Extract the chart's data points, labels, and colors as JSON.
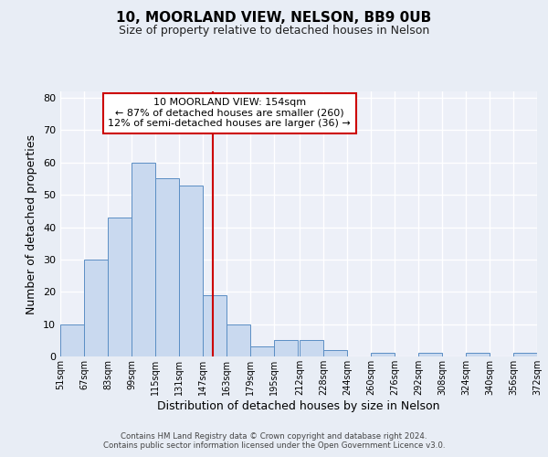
{
  "title": "10, MOORLAND VIEW, NELSON, BB9 0UB",
  "subtitle": "Size of property relative to detached houses in Nelson",
  "xlabel": "Distribution of detached houses by size in Nelson",
  "ylabel": "Number of detached properties",
  "bins": [
    51,
    67,
    83,
    99,
    115,
    131,
    147,
    163,
    179,
    195,
    212,
    228,
    244,
    260,
    276,
    292,
    308,
    324,
    340,
    356,
    372
  ],
  "counts": [
    10,
    30,
    43,
    60,
    55,
    53,
    19,
    10,
    3,
    5,
    5,
    2,
    0,
    1,
    0,
    1,
    0,
    1,
    0,
    1
  ],
  "bar_facecolor": "#c9d9ef",
  "bar_edgecolor": "#5b8ec4",
  "vline_x": 154,
  "vline_color": "#cc0000",
  "annotation_line1": "10 MOORLAND VIEW: 154sqm",
  "annotation_line2": "← 87% of detached houses are smaller (260)",
  "annotation_line3": "12% of semi-detached houses are larger (36) →",
  "annotation_box_edgecolor": "#cc0000",
  "annotation_box_facecolor": "#ffffff",
  "ylim": [
    0,
    82
  ],
  "yticks": [
    0,
    10,
    20,
    30,
    40,
    50,
    60,
    70,
    80
  ],
  "bg_color": "#e8edf5",
  "plot_bg_color": "#edf0f8",
  "grid_color": "#ffffff",
  "footer_line1": "Contains HM Land Registry data © Crown copyright and database right 2024.",
  "footer_line2": "Contains public sector information licensed under the Open Government Licence v3.0.",
  "tick_labels": [
    "51sqm",
    "67sqm",
    "83sqm",
    "99sqm",
    "115sqm",
    "131sqm",
    "147sqm",
    "163sqm",
    "179sqm",
    "195sqm",
    "212sqm",
    "228sqm",
    "244sqm",
    "260sqm",
    "276sqm",
    "292sqm",
    "308sqm",
    "324sqm",
    "340sqm",
    "356sqm",
    "372sqm"
  ]
}
